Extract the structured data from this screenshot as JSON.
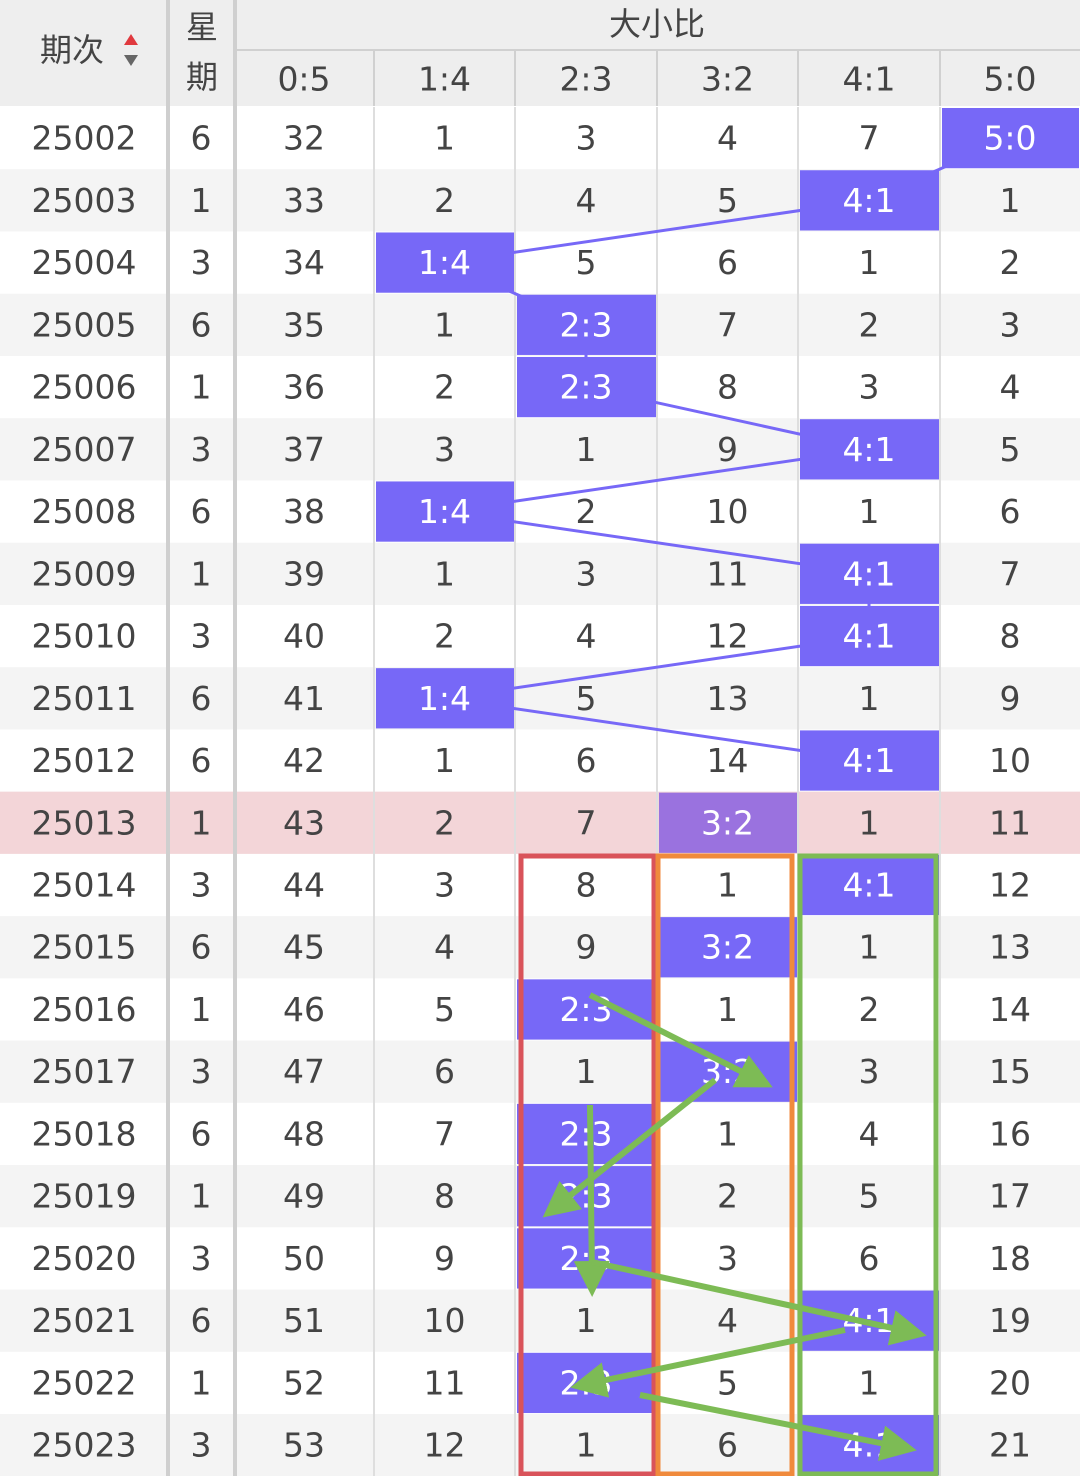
{
  "header": {
    "period": "期次",
    "weekday": "星期",
    "group": "大小比",
    "columns": [
      "0:5",
      "1:4",
      "2:3",
      "3:2",
      "4:1",
      "5:0"
    ]
  },
  "rows": [
    {
      "period": 25002,
      "weekday": 6,
      "cells": [
        32,
        1,
        3,
        4,
        7,
        "5:0"
      ]
    },
    {
      "period": 25003,
      "weekday": 1,
      "cells": [
        33,
        2,
        4,
        5,
        "4:1",
        1
      ]
    },
    {
      "period": 25004,
      "weekday": 3,
      "cells": [
        34,
        "1:4",
        5,
        6,
        1,
        2
      ]
    },
    {
      "period": 25005,
      "weekday": 6,
      "cells": [
        35,
        1,
        "2:3",
        7,
        2,
        3
      ]
    },
    {
      "period": 25006,
      "weekday": 1,
      "cells": [
        36,
        2,
        "2:3",
        8,
        3,
        4
      ]
    },
    {
      "period": 25007,
      "weekday": 3,
      "cells": [
        37,
        3,
        1,
        9,
        "4:1",
        5
      ]
    },
    {
      "period": 25008,
      "weekday": 6,
      "cells": [
        38,
        "1:4",
        2,
        10,
        1,
        6
      ]
    },
    {
      "period": 25009,
      "weekday": 1,
      "cells": [
        39,
        1,
        3,
        11,
        "4:1",
        7
      ]
    },
    {
      "period": 25010,
      "weekday": 3,
      "cells": [
        40,
        2,
        4,
        12,
        "4:1",
        8
      ]
    },
    {
      "period": 25011,
      "weekday": 6,
      "cells": [
        41,
        "1:4",
        5,
        13,
        1,
        9
      ]
    },
    {
      "period": 25012,
      "weekday": 6,
      "cells": [
        42,
        1,
        6,
        14,
        "4:1",
        10
      ]
    },
    {
      "period": 25013,
      "weekday": 1,
      "cells": [
        43,
        2,
        7,
        "3:2",
        1,
        11
      ],
      "highlighted": true
    },
    {
      "period": 25014,
      "weekday": 3,
      "cells": [
        44,
        3,
        8,
        1,
        "4:1",
        12
      ]
    },
    {
      "period": 25015,
      "weekday": 6,
      "cells": [
        45,
        4,
        9,
        "3:2",
        1,
        13
      ]
    },
    {
      "period": 25016,
      "weekday": 1,
      "cells": [
        46,
        5,
        "2:3",
        1,
        2,
        14
      ]
    },
    {
      "period": 25017,
      "weekday": 3,
      "cells": [
        47,
        6,
        1,
        "3:2",
        3,
        15
      ]
    },
    {
      "period": 25018,
      "weekday": 6,
      "cells": [
        48,
        7,
        "2:3",
        1,
        4,
        16
      ]
    },
    {
      "period": 25019,
      "weekday": 1,
      "cells": [
        49,
        8,
        "2:3",
        2,
        5,
        17
      ]
    },
    {
      "period": 25020,
      "weekday": 3,
      "cells": [
        50,
        9,
        "2:3",
        3,
        6,
        18
      ]
    },
    {
      "period": 25021,
      "weekday": 6,
      "cells": [
        51,
        10,
        1,
        4,
        "4:1",
        19
      ]
    },
    {
      "period": 25022,
      "weekday": 1,
      "cells": [
        52,
        11,
        "2:3",
        5,
        1,
        20
      ]
    },
    {
      "period": 25023,
      "weekday": 3,
      "cells": [
        53,
        12,
        1,
        6,
        "4:1",
        21
      ]
    }
  ]
}
